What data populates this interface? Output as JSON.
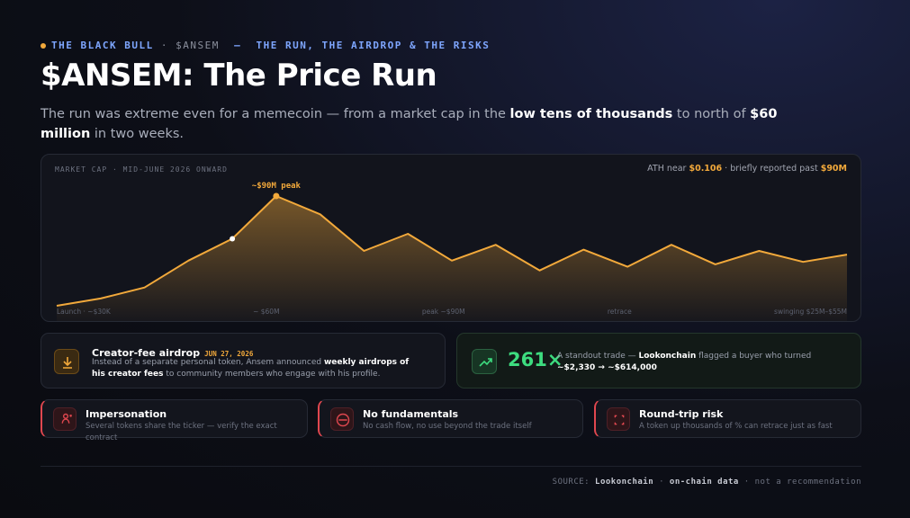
{
  "header": {
    "eyebrow": [
      "THE BLACK BULL",
      "· $ANSEM",
      "–",
      "THE RUN, THE AIRDROP & THE RISKS"
    ],
    "title": "$ANSEM: The Price Run",
    "subtitle": [
      "The run was extreme even for a memecoin — from a market cap in the ",
      "low tens of thousands",
      " to north of ",
      "$60 million",
      " in two weeks."
    ]
  },
  "chart_data": {
    "type": "line",
    "label": "MARKET CAP · MID-JUNE 2026 ONWARD",
    "note": [
      "ATH near ",
      "$0.106",
      " · briefly reported past ",
      "$90M"
    ],
    "annotation": "~$90M peak",
    "x_labels": [
      "Launch · ~$30K",
      "~ $60M",
      "peak ~$90M",
      "retrace",
      "swinging $25M–$55M"
    ],
    "series": [
      {
        "color": "#f2a93b",
        "values": [
          0.03,
          6,
          15,
          37,
          55,
          90,
          75,
          45,
          59,
          37,
          50,
          29,
          46,
          32,
          50,
          34,
          45,
          36,
          42
        ]
      }
    ]
  },
  "cards": {
    "airdrop": {
      "title": "Creator-fee airdrop",
      "date": "JUN 27, 2026",
      "text": [
        "Instead of a separate personal token, Ansem announced ",
        "weekly airdrops of his creator fees",
        " to community members who engage with his profile."
      ]
    },
    "trade": {
      "multiple": "261×",
      "text": [
        "A standout trade — ",
        "Lookonchain",
        " flagged a buyer who turned ",
        "~$2,330 → ~$614,000"
      ]
    }
  },
  "risks": [
    {
      "title": "Impersonation",
      "text": "Several tokens share the ticker — verify the exact contract"
    },
    {
      "title": "No fundamentals",
      "text": "No cash flow, no use beyond the trade itself"
    },
    {
      "title": "Round-trip risk",
      "text": "A token up thousands of % can retrace just as fast"
    }
  ],
  "footer": [
    "SOURCE:",
    "Lookonchain",
    "·",
    "on-chain data",
    "· not a recommendation"
  ]
}
